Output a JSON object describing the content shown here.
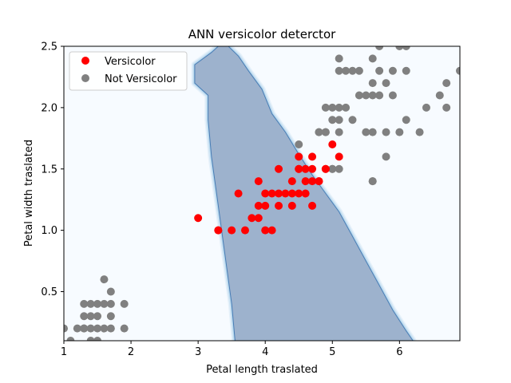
{
  "chart_data": {
    "type": "scatter",
    "title": "ANN versicolor deterctor",
    "xlabel": "Petal length traslated",
    "ylabel": "Petal width traslated",
    "xlim": [
      1.0,
      6.9
    ],
    "ylim": [
      0.1,
      2.5
    ],
    "xticks": [
      "1",
      "2",
      "3",
      "4",
      "5",
      "6"
    ],
    "yticks": [
      "0.5",
      "1.0",
      "1.5",
      "2.0",
      "2.5"
    ],
    "grid": false,
    "legend_position": "upper-left",
    "background_color": "#f7fbff",
    "region_color": "#9db2cd",
    "decision_region": [
      [
        3.55,
        0.1
      ],
      [
        3.5,
        0.4
      ],
      [
        3.4,
        0.8
      ],
      [
        3.3,
        1.2
      ],
      [
        3.2,
        1.6
      ],
      [
        3.15,
        1.9
      ],
      [
        3.15,
        2.1
      ],
      [
        2.95,
        2.2
      ],
      [
        2.95,
        2.35
      ],
      [
        3.2,
        2.45
      ],
      [
        3.3,
        2.5
      ],
      [
        3.45,
        2.5
      ],
      [
        3.6,
        2.42
      ],
      [
        3.75,
        2.3
      ],
      [
        3.95,
        2.15
      ],
      [
        4.1,
        1.95
      ],
      [
        4.3,
        1.8
      ],
      [
        4.5,
        1.62
      ],
      [
        4.7,
        1.45
      ],
      [
        4.9,
        1.3
      ],
      [
        5.1,
        1.15
      ],
      [
        5.3,
        0.95
      ],
      [
        5.5,
        0.75
      ],
      [
        5.7,
        0.55
      ],
      [
        5.9,
        0.35
      ],
      [
        6.1,
        0.18
      ],
      [
        6.2,
        0.1
      ]
    ],
    "series": [
      {
        "name": "Versicolor",
        "color": "#ff0000",
        "points": [
          [
            3.0,
            1.1
          ],
          [
            3.3,
            1.0
          ],
          [
            3.3,
            1.0
          ],
          [
            3.5,
            1.0
          ],
          [
            3.6,
            1.3
          ],
          [
            3.7,
            1.0
          ],
          [
            3.8,
            1.1
          ],
          [
            3.9,
            1.1
          ],
          [
            3.9,
            1.2
          ],
          [
            3.9,
            1.4
          ],
          [
            4.0,
            1.0
          ],
          [
            4.0,
            1.2
          ],
          [
            4.0,
            1.3
          ],
          [
            4.1,
            1.0
          ],
          [
            4.1,
            1.3
          ],
          [
            4.2,
            1.2
          ],
          [
            4.2,
            1.3
          ],
          [
            4.2,
            1.5
          ],
          [
            4.3,
            1.3
          ],
          [
            4.4,
            1.2
          ],
          [
            4.4,
            1.3
          ],
          [
            4.4,
            1.4
          ],
          [
            4.5,
            1.3
          ],
          [
            4.5,
            1.5
          ],
          [
            4.5,
            1.6
          ],
          [
            4.6,
            1.3
          ],
          [
            4.6,
            1.4
          ],
          [
            4.6,
            1.5
          ],
          [
            4.7,
            1.2
          ],
          [
            4.7,
            1.4
          ],
          [
            4.7,
            1.5
          ],
          [
            4.7,
            1.6
          ],
          [
            4.8,
            1.4
          ],
          [
            4.9,
            1.5
          ],
          [
            5.0,
            1.7
          ],
          [
            5.1,
            1.6
          ],
          [
            4.8,
            1.4
          ],
          [
            4.5,
            1.5
          ],
          [
            4.9,
            1.5
          ]
        ]
      },
      {
        "name": "Not Versicolor",
        "color": "#808080",
        "points": [
          [
            1.0,
            0.2
          ],
          [
            1.1,
            0.1
          ],
          [
            1.2,
            0.2
          ],
          [
            1.3,
            0.2
          ],
          [
            1.3,
            0.3
          ],
          [
            1.3,
            0.4
          ],
          [
            1.4,
            0.1
          ],
          [
            1.4,
            0.2
          ],
          [
            1.4,
            0.3
          ],
          [
            1.5,
            0.1
          ],
          [
            1.5,
            0.2
          ],
          [
            1.5,
            0.4
          ],
          [
            1.6,
            0.2
          ],
          [
            1.6,
            0.4
          ],
          [
            1.6,
            0.6
          ],
          [
            1.7,
            0.2
          ],
          [
            1.7,
            0.3
          ],
          [
            1.7,
            0.4
          ],
          [
            1.7,
            0.5
          ],
          [
            1.9,
            0.2
          ],
          [
            1.9,
            0.4
          ],
          [
            1.3,
            0.2
          ],
          [
            1.5,
            0.3
          ],
          [
            1.4,
            0.4
          ],
          [
            4.5,
            1.7
          ],
          [
            4.8,
            1.8
          ],
          [
            4.9,
            1.8
          ],
          [
            5.0,
            1.5
          ],
          [
            5.1,
            1.5
          ],
          [
            5.1,
            1.8
          ],
          [
            5.0,
            2.0
          ],
          [
            4.9,
            2.0
          ],
          [
            5.1,
            1.9
          ],
          [
            5.1,
            2.0
          ],
          [
            5.0,
            1.9
          ],
          [
            5.1,
            2.3
          ],
          [
            5.1,
            2.4
          ],
          [
            5.2,
            2.3
          ],
          [
            5.2,
            2.0
          ],
          [
            5.3,
            1.9
          ],
          [
            5.3,
            2.3
          ],
          [
            5.4,
            2.1
          ],
          [
            5.4,
            2.3
          ],
          [
            5.5,
            1.8
          ],
          [
            5.5,
            2.1
          ],
          [
            5.6,
            1.4
          ],
          [
            5.6,
            1.8
          ],
          [
            5.6,
            2.1
          ],
          [
            5.6,
            2.2
          ],
          [
            5.6,
            2.4
          ],
          [
            5.7,
            2.1
          ],
          [
            5.7,
            2.3
          ],
          [
            5.7,
            2.5
          ],
          [
            5.8,
            1.6
          ],
          [
            5.8,
            1.8
          ],
          [
            5.8,
            2.2
          ],
          [
            5.9,
            2.1
          ],
          [
            5.9,
            2.3
          ],
          [
            6.0,
            1.8
          ],
          [
            6.0,
            2.5
          ],
          [
            6.1,
            1.9
          ],
          [
            6.1,
            2.3
          ],
          [
            6.1,
            2.5
          ],
          [
            6.3,
            1.8
          ],
          [
            6.4,
            2.0
          ],
          [
            6.6,
            2.1
          ],
          [
            6.7,
            2.0
          ],
          [
            6.7,
            2.2
          ],
          [
            6.9,
            2.3
          ],
          [
            5.0,
            1.5
          ],
          [
            4.8,
            1.8
          ],
          [
            4.9,
            1.8
          ],
          [
            5.6,
            1.4
          ]
        ]
      }
    ]
  }
}
